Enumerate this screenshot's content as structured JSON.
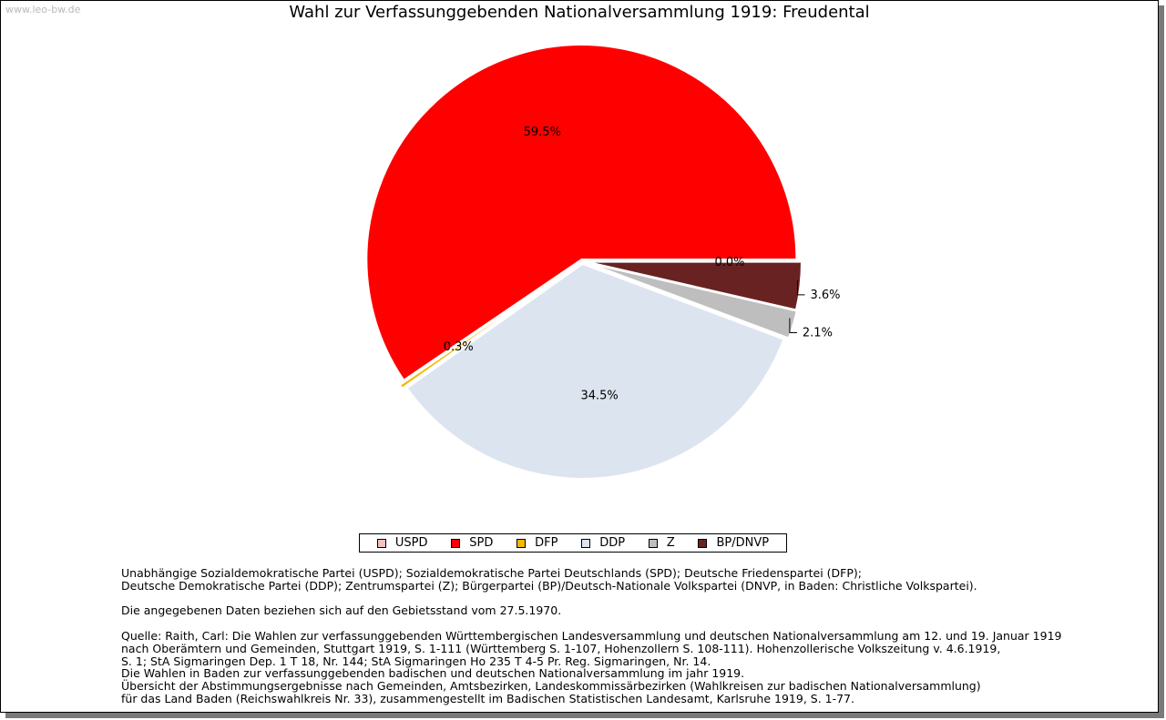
{
  "watermark": "www.leo-bw.de",
  "chart_data": {
    "type": "pie",
    "title": "Wahl zur Verfassunggebenden Nationalversammlung 1919: Freudental",
    "slices": [
      {
        "name": "USPD",
        "value": 0.0,
        "label": "0.0%",
        "color": "#f4c0c0"
      },
      {
        "name": "SPD",
        "value": 59.5,
        "label": "59.5%",
        "color": "#ff0000"
      },
      {
        "name": "DFP",
        "value": 0.3,
        "label": "0.3%",
        "color": "#f5b800"
      },
      {
        "name": "DDP",
        "value": 34.5,
        "label": "34.5%",
        "color": "#dce4f0"
      },
      {
        "name": "Z",
        "value": 2.1,
        "label": "2.1%",
        "color": "#bebebe"
      },
      {
        "name": "BP/DNVP",
        "value": 3.6,
        "label": "3.6%",
        "color": "#692222"
      }
    ],
    "legend_position": "bottom"
  },
  "notes": {
    "parties": "Unabhängige Sozialdemokratische Partei (USPD); Sozialdemokratische Partei Deutschlands (SPD); Deutsche Friedenspartei (DFP);\nDeutsche Demokratische Partei (DDP); Zentrumspartei (Z); Bürgerpartei (BP)/Deutsch-Nationale Volkspartei (DNVP, in Baden: Christliche Volkspartei).",
    "gebietsstand": "Die angegebenen Daten beziehen sich auf den Gebietsstand vom 27.5.1970.",
    "quelle": "Quelle: Raith, Carl: Die Wahlen zur verfassunggebenden Württembergischen Landesversammlung und deutschen Nationalversammlung am 12. und 19. Januar 1919\nnach Oberämtern und Gemeinden, Stuttgart 1919, S. 1-111 (Württemberg S. 1-107, Hohenzollern S. 108-111). Hohenzollerische Volkszeitung v. 4.6.1919,\nS. 1; StA Sigmaringen Dep. 1 T 18, Nr. 144; StA Sigmaringen Ho 235 T 4-5 Pr. Reg. Sigmaringen, Nr. 14.\nDie Wahlen in Baden zur verfassunggebenden badischen und deutschen Nationalversammlung im jahr 1919.\nÜbersicht der Abstimmungsergebnisse nach Gemeinden, Amtsbezirken, Landeskommissärbezirken (Wahlkreisen zur badischen Nationalversammlung)\nfür das Land Baden (Reichswahlkreis Nr. 33), zusammengestellt im Badischen Statistischen Landesamt, Karlsruhe 1919, S. 1-77."
  }
}
